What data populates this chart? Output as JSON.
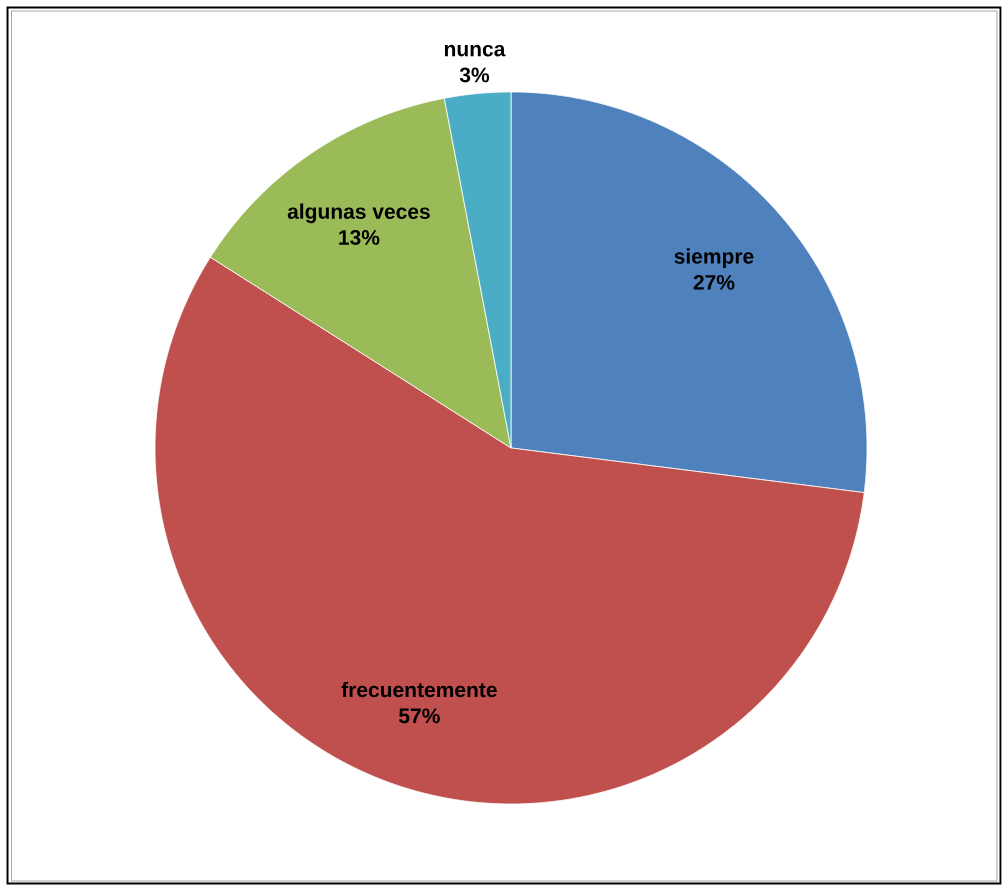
{
  "chart_data": {
    "type": "pie",
    "categories": [
      "siempre",
      "frecuentemente",
      "algunas veces",
      "nunca"
    ],
    "values": [
      27,
      57,
      13,
      3
    ],
    "colors": [
      "#4f81bd",
      "#c0504d",
      "#9bbb59",
      "#4bacc6"
    ],
    "value_labels": [
      "27%",
      "57%",
      "13%",
      "3%"
    ]
  }
}
